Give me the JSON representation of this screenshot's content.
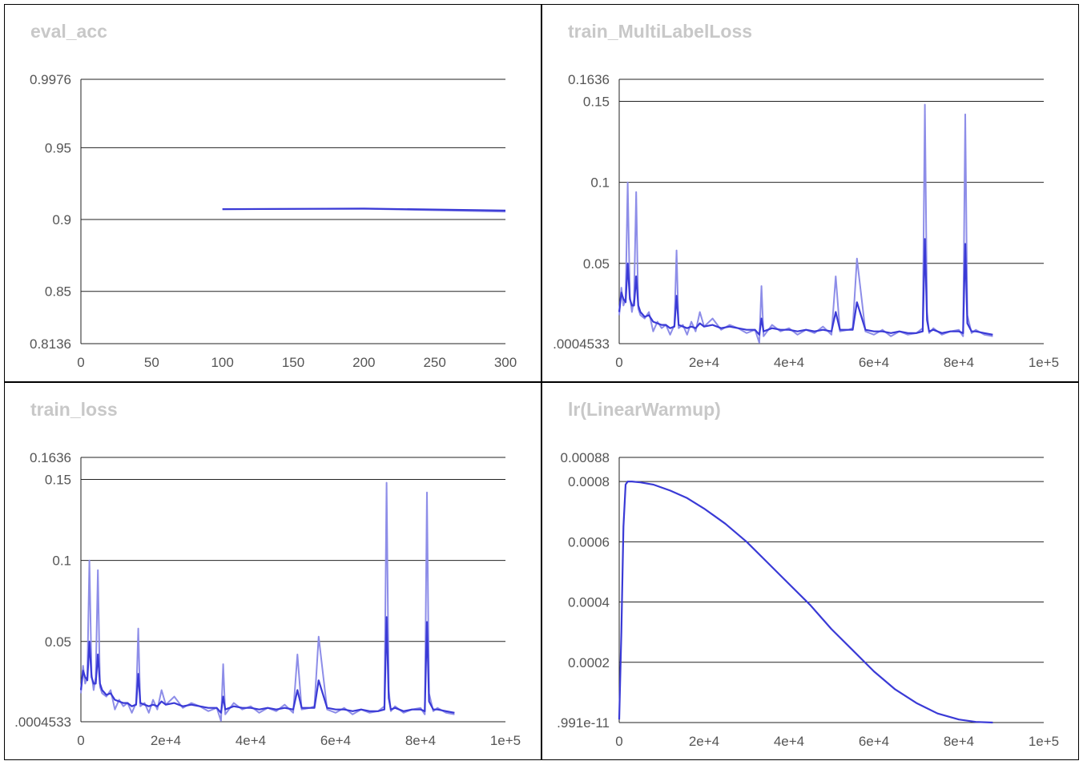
{
  "colors": {
    "series": "#3a3ad6",
    "series_raw": "#8d8de8",
    "grid": "#222222",
    "title": "#c8c8c8",
    "tick": "#555555"
  },
  "chart_data": [
    {
      "id": "eval_acc",
      "type": "line",
      "title": "eval_acc",
      "xlim": [
        0,
        300
      ],
      "ylim": [
        0.8136,
        0.9976
      ],
      "x_ticks": [
        0,
        50,
        100,
        150,
        200,
        250,
        300
      ],
      "x_tick_labels": [
        "0",
        "50",
        "100",
        "150",
        "200",
        "250",
        "300"
      ],
      "y_ticks": [
        0.8136,
        0.85,
        0.9,
        0.95,
        0.9976
      ],
      "y_tick_labels": [
        "0.8136",
        "0.85",
        "0.9",
        "0.95",
        "0.9976"
      ],
      "grid": true,
      "series": [
        {
          "x": [
            100,
            200,
            300
          ],
          "y": [
            0.9072,
            0.9075,
            0.9055
          ],
          "smoothed": [
            0.9072,
            0.9076,
            0.9062
          ]
        }
      ]
    },
    {
      "id": "train_multilabel",
      "type": "line",
      "title": "train_MultiLabelLoss",
      "xlim": [
        0,
        100000
      ],
      "ylim": [
        0.0004533,
        0.1636
      ],
      "x_ticks": [
        0,
        20000,
        40000,
        60000,
        80000,
        100000
      ],
      "x_tick_labels": [
        "0",
        "2e+4",
        "4e+4",
        "6e+4",
        "8e+4",
        "1e+5"
      ],
      "y_ticks": [
        0.0004533,
        0.05,
        0.1,
        0.15,
        0.1636
      ],
      "y_tick_labels": [
        ".0004533",
        "0.05",
        "0.1",
        "0.15",
        "0.1636"
      ],
      "grid": true,
      "series": [
        {
          "x": [
            0,
            500,
            1000,
            1500,
            2000,
            2500,
            3000,
            3500,
            4000,
            4500,
            5000,
            6000,
            7000,
            8000,
            9000,
            10000,
            11000,
            12000,
            13000,
            13500,
            14000,
            15000,
            16000,
            17000,
            18000,
            19000,
            20000,
            22000,
            24000,
            26000,
            28000,
            30000,
            32000,
            33000,
            33500,
            34000,
            36000,
            38000,
            40000,
            42000,
            44000,
            46000,
            48000,
            50000,
            51000,
            52000,
            54000,
            55000,
            56000,
            58000,
            60000,
            62000,
            64000,
            66000,
            68000,
            70000,
            71500,
            72000,
            72500,
            73000,
            74000,
            76000,
            78000,
            80000,
            81000,
            81500,
            82000,
            83000,
            84000,
            86000,
            88000
          ],
          "y": [
            0.018,
            0.035,
            0.024,
            0.028,
            0.1,
            0.03,
            0.02,
            0.028,
            0.094,
            0.022,
            0.018,
            0.016,
            0.02,
            0.008,
            0.014,
            0.01,
            0.012,
            0.006,
            0.012,
            0.058,
            0.01,
            0.012,
            0.006,
            0.014,
            0.008,
            0.02,
            0.011,
            0.016,
            0.009,
            0.012,
            0.01,
            0.007,
            0.009,
            0.001,
            0.036,
            0.005,
            0.012,
            0.008,
            0.01,
            0.006,
            0.009,
            0.007,
            0.011,
            0.006,
            0.042,
            0.008,
            0.009,
            0.01,
            0.053,
            0.008,
            0.006,
            0.009,
            0.005,
            0.008,
            0.006,
            0.007,
            0.01,
            0.148,
            0.02,
            0.007,
            0.01,
            0.006,
            0.008,
            0.009,
            0.005,
            0.142,
            0.018,
            0.007,
            0.009,
            0.006,
            0.005
          ],
          "smoothed": [
            0.02,
            0.032,
            0.028,
            0.026,
            0.05,
            0.028,
            0.024,
            0.024,
            0.042,
            0.024,
            0.02,
            0.017,
            0.018,
            0.014,
            0.013,
            0.012,
            0.012,
            0.01,
            0.011,
            0.03,
            0.012,
            0.011,
            0.01,
            0.011,
            0.01,
            0.013,
            0.011,
            0.012,
            0.01,
            0.011,
            0.01,
            0.009,
            0.009,
            0.006,
            0.016,
            0.008,
            0.01,
            0.009,
            0.009,
            0.008,
            0.009,
            0.008,
            0.009,
            0.008,
            0.02,
            0.009,
            0.009,
            0.009,
            0.026,
            0.009,
            0.008,
            0.008,
            0.007,
            0.008,
            0.007,
            0.007,
            0.008,
            0.065,
            0.015,
            0.008,
            0.009,
            0.007,
            0.008,
            0.008,
            0.007,
            0.062,
            0.013,
            0.008,
            0.008,
            0.007,
            0.006
          ]
        }
      ]
    },
    {
      "id": "train_loss",
      "type": "line",
      "title": "train_loss",
      "xlim": [
        0,
        100000
      ],
      "ylim": [
        0.0004533,
        0.1636
      ],
      "x_ticks": [
        0,
        20000,
        40000,
        60000,
        80000,
        100000
      ],
      "x_tick_labels": [
        "0",
        "2e+4",
        "4e+4",
        "6e+4",
        "8e+4",
        "1e+5"
      ],
      "y_ticks": [
        0.0004533,
        0.05,
        0.1,
        0.15,
        0.1636
      ],
      "y_tick_labels": [
        ".0004533",
        "0.05",
        "0.1",
        "0.15",
        "0.1636"
      ],
      "grid": true,
      "series": [
        {
          "x": [
            0,
            500,
            1000,
            1500,
            2000,
            2500,
            3000,
            3500,
            4000,
            4500,
            5000,
            6000,
            7000,
            8000,
            9000,
            10000,
            11000,
            12000,
            13000,
            13500,
            14000,
            15000,
            16000,
            17000,
            18000,
            19000,
            20000,
            22000,
            24000,
            26000,
            28000,
            30000,
            32000,
            33000,
            33500,
            34000,
            36000,
            38000,
            40000,
            42000,
            44000,
            46000,
            48000,
            50000,
            51000,
            52000,
            54000,
            55000,
            56000,
            58000,
            60000,
            62000,
            64000,
            66000,
            68000,
            70000,
            71500,
            72000,
            72500,
            73000,
            74000,
            76000,
            78000,
            80000,
            81000,
            81500,
            82000,
            83000,
            84000,
            86000,
            88000
          ],
          "y": [
            0.018,
            0.035,
            0.024,
            0.028,
            0.1,
            0.03,
            0.02,
            0.028,
            0.094,
            0.022,
            0.018,
            0.016,
            0.02,
            0.008,
            0.014,
            0.01,
            0.012,
            0.006,
            0.012,
            0.058,
            0.01,
            0.012,
            0.006,
            0.014,
            0.008,
            0.02,
            0.011,
            0.016,
            0.009,
            0.012,
            0.01,
            0.007,
            0.009,
            0.001,
            0.036,
            0.005,
            0.012,
            0.008,
            0.01,
            0.006,
            0.009,
            0.007,
            0.011,
            0.006,
            0.042,
            0.008,
            0.009,
            0.01,
            0.053,
            0.008,
            0.006,
            0.009,
            0.005,
            0.008,
            0.006,
            0.007,
            0.01,
            0.148,
            0.02,
            0.007,
            0.01,
            0.006,
            0.008,
            0.009,
            0.005,
            0.142,
            0.018,
            0.007,
            0.009,
            0.006,
            0.005
          ],
          "smoothed": [
            0.02,
            0.032,
            0.028,
            0.026,
            0.05,
            0.028,
            0.024,
            0.024,
            0.042,
            0.024,
            0.02,
            0.017,
            0.018,
            0.014,
            0.013,
            0.012,
            0.012,
            0.01,
            0.011,
            0.03,
            0.012,
            0.011,
            0.01,
            0.011,
            0.01,
            0.013,
            0.011,
            0.012,
            0.01,
            0.011,
            0.01,
            0.009,
            0.009,
            0.006,
            0.016,
            0.008,
            0.01,
            0.009,
            0.009,
            0.008,
            0.009,
            0.008,
            0.009,
            0.008,
            0.02,
            0.009,
            0.009,
            0.009,
            0.026,
            0.009,
            0.008,
            0.008,
            0.007,
            0.008,
            0.007,
            0.007,
            0.008,
            0.065,
            0.015,
            0.008,
            0.009,
            0.007,
            0.008,
            0.008,
            0.007,
            0.062,
            0.013,
            0.008,
            0.008,
            0.007,
            0.006
          ]
        }
      ]
    },
    {
      "id": "lr",
      "type": "line",
      "title": "lr(LinearWarmup)",
      "xlim": [
        0,
        100000
      ],
      "ylim": [
        0,
        0.00088
      ],
      "x_ticks": [
        0,
        20000,
        40000,
        60000,
        80000,
        100000
      ],
      "x_tick_labels": [
        "0",
        "2e+4",
        "4e+4",
        "6e+4",
        "8e+4",
        "1e+5"
      ],
      "y_ticks": [
        0,
        0.0002,
        0.0004,
        0.0006,
        0.0008,
        0.00088
      ],
      "y_tick_labels": [
        ".991e-11",
        "0.0002",
        "0.0004",
        "0.0006",
        "0.0008",
        "0.00088"
      ],
      "grid": true,
      "series": [
        {
          "x": [
            0,
            500,
            1000,
            1500,
            2000,
            3000,
            5000,
            8000,
            12000,
            16000,
            20000,
            25000,
            30000,
            35000,
            40000,
            45000,
            50000,
            55000,
            60000,
            65000,
            70000,
            75000,
            80000,
            84000,
            88000
          ],
          "y": [
            1e-05,
            0.0003,
            0.00065,
            0.00079,
            0.0008,
            0.0008,
            0.000797,
            0.00079,
            0.00077,
            0.000745,
            0.00071,
            0.00066,
            0.0006,
            0.00053,
            0.00046,
            0.00039,
            0.00031,
            0.00024,
            0.00017,
            0.00011,
            6.5e-05,
            3e-05,
            1e-05,
            2e-06,
            0.0
          ]
        }
      ]
    }
  ]
}
